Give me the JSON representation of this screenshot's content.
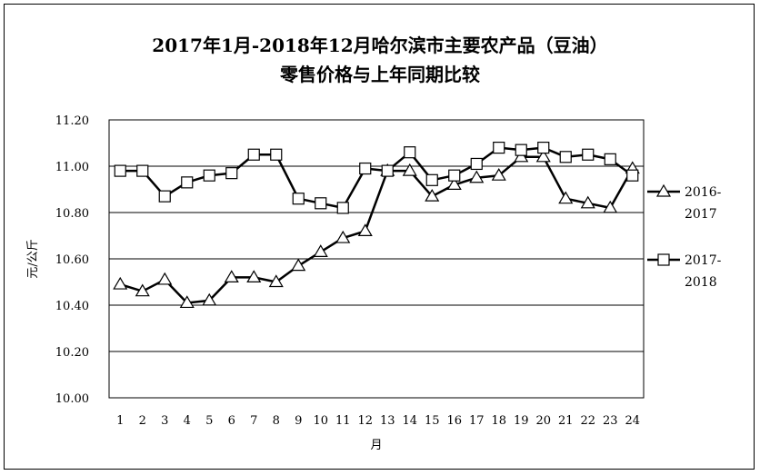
{
  "chart_data": {
    "type": "line",
    "title_line1": "2017年1月-2018年12月哈尔滨市主要农产品（豆油）",
    "title_line2": "零售价格与上年同期比较",
    "xlabel": "月",
    "ylabel": "元/公斤",
    "ylim": [
      10.0,
      11.2
    ],
    "y_ticks": [
      "10.00",
      "10.20",
      "10.40",
      "10.60",
      "10.80",
      "11.00",
      "11.20"
    ],
    "categories": [
      "1",
      "2",
      "3",
      "4",
      "5",
      "6",
      "7",
      "8",
      "9",
      "10",
      "11",
      "12",
      "13",
      "14",
      "15",
      "16",
      "17",
      "18",
      "19",
      "20",
      "21",
      "22",
      "23",
      "24"
    ],
    "grid": "horizontal",
    "legend_position": "right",
    "series": [
      {
        "name": "2016-2017",
        "name_line1": "2016-",
        "name_line2": "2017",
        "marker": "triangle",
        "values": [
          10.49,
          10.46,
          10.51,
          10.41,
          10.42,
          10.52,
          10.52,
          10.5,
          10.57,
          10.63,
          10.69,
          10.72,
          10.98,
          10.98,
          10.87,
          10.92,
          10.95,
          10.96,
          11.04,
          11.04,
          10.86,
          10.84,
          10.82,
          10.99
        ]
      },
      {
        "name": "2017-2018",
        "name_line1": "2017-",
        "name_line2": "2018",
        "marker": "square",
        "values": [
          10.98,
          10.98,
          10.87,
          10.93,
          10.96,
          10.97,
          11.05,
          11.05,
          10.86,
          10.84,
          10.82,
          10.99,
          10.98,
          11.06,
          10.94,
          10.96,
          11.01,
          11.08,
          11.07,
          11.08,
          11.04,
          11.05,
          11.03,
          10.96
        ]
      }
    ]
  }
}
